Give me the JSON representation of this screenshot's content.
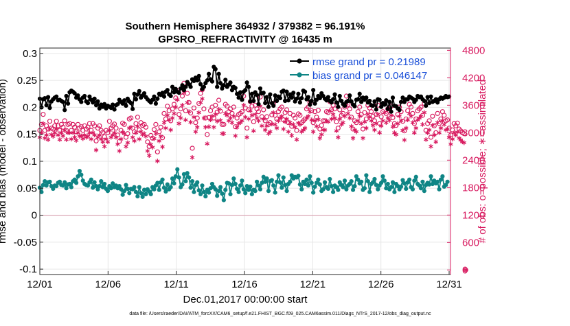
{
  "chart_data": {
    "type": "line",
    "title_lines": [
      "Southern Hemisphere 364932 / 379382 = 96.191%",
      "GPSRO_REFRACTIVITY @ 16435 m"
    ],
    "xlabel": "Dec.01,2017 00:00:00 start",
    "ylabel_left": "rmse and bias (model - observation)",
    "ylabel_right": "# of obs: o=possible; ∗=assimilated",
    "footnote": "data file: /Users/raeder/DAI/ATM_forcXX/CAM6_setup/f.e21.FHIST_BGC.f09_025.CAM6assim.011/Diags_NTrS_2017-12/obs_diag_output.nc",
    "x_ticks": [
      "12/01",
      "12/06",
      "12/11",
      "12/16",
      "12/21",
      "12/26",
      "12/31"
    ],
    "x_tick_values": [
      1,
      6,
      11,
      16,
      21,
      26,
      31
    ],
    "xlim": [
      1,
      31.1
    ],
    "y_left_ticks": [
      "0.3",
      "0.25",
      "0.2",
      "0.15",
      "0.1",
      "0.05",
      "0",
      "-0.05",
      "-0.1"
    ],
    "y_left_tick_values": [
      0.3,
      0.25,
      0.2,
      0.15,
      0.1,
      0.05,
      0,
      -0.05,
      -0.1
    ],
    "ylim_left": [
      -0.11,
      0.31
    ],
    "y_right_ticks": [
      "4800",
      "4200",
      "3600",
      "3000",
      "2400",
      "1800",
      "1200",
      "600",
      "0"
    ],
    "y_right_tick_values": [
      4800,
      4200,
      3600,
      3000,
      2400,
      1800,
      1200,
      600,
      0
    ],
    "ylim_right": [
      -100,
      4850
    ],
    "legend": {
      "location": "top-right",
      "entries": [
        "rmse grand pr = 0.21989",
        "bias grand pr = 0.046147"
      ]
    },
    "colors": {
      "rmse": "#000000",
      "bias": "#0f8585",
      "obs": "#d81b60",
      "zero_line": "#d9a0b0",
      "legend_text": "#1a4fd8"
    },
    "series": [
      {
        "name": "rmse grand pr = 0.21989",
        "marker": "filled-circle",
        "values": [
          0.216,
          0.2,
          0.215,
          0.217,
          0.204,
          0.219,
          0.199,
          0.211,
          0.215,
          0.218,
          0.22,
          0.213,
          0.214,
          0.212,
          0.21,
          0.195,
          0.221,
          0.207,
          0.228,
          0.231,
          0.229,
          0.226,
          0.218,
          0.222,
          0.215,
          0.21,
          0.218,
          0.221,
          0.211,
          0.208,
          0.22,
          0.214,
          0.209,
          0.216,
          0.204,
          0.211,
          0.198,
          0.205,
          0.201,
          0.206,
          0.198,
          0.203,
          0.201,
          0.199,
          0.205,
          0.196,
          0.204,
          0.206,
          0.214,
          0.21,
          0.207,
          0.213,
          0.203,
          0.216,
          0.211,
          0.208,
          0.197,
          0.225,
          0.215,
          0.224,
          0.23,
          0.218,
          0.222,
          0.226,
          0.219,
          0.215,
          0.212,
          0.209,
          0.214,
          0.22,
          0.207,
          0.216,
          0.225,
          0.223,
          0.227,
          0.22,
          0.229,
          0.232,
          0.224,
          0.221,
          0.238,
          0.228,
          0.234,
          0.229,
          0.227,
          0.235,
          0.241,
          0.232,
          0.238,
          0.247,
          0.243,
          0.238,
          0.252,
          0.249,
          0.255,
          0.25,
          0.258,
          0.243,
          0.234,
          0.238,
          0.245,
          0.25,
          0.262,
          0.252,
          0.248,
          0.275,
          0.271,
          0.238,
          0.262,
          0.245,
          0.235,
          0.241,
          0.251,
          0.238,
          0.242,
          0.246,
          0.232,
          0.238,
          0.236,
          0.225,
          0.218,
          0.228,
          0.214,
          0.229,
          0.232,
          0.246,
          0.238,
          0.211,
          0.225,
          0.212,
          0.228,
          0.223,
          0.206,
          0.235,
          0.226,
          0.227,
          0.208,
          0.219,
          0.201,
          0.224,
          0.208,
          0.203,
          0.222,
          0.212,
          0.22,
          0.217,
          0.229,
          0.231,
          0.212,
          0.229,
          0.213,
          0.224,
          0.218,
          0.227,
          0.211,
          0.216,
          0.225,
          0.209,
          0.217,
          0.231,
          0.229,
          0.215,
          0.219,
          0.205,
          0.212,
          0.232,
          0.207,
          0.214,
          0.221,
          0.217,
          0.226,
          0.221,
          0.216,
          0.213,
          0.219,
          0.212,
          0.209,
          0.215,
          0.224,
          0.209,
          0.201,
          0.221,
          0.212,
          0.206,
          0.203,
          0.21,
          0.212,
          0.222,
          0.211,
          0.205,
          0.202,
          0.214,
          0.215,
          0.225,
          0.21,
          0.218,
          0.214,
          0.218,
          0.209,
          0.212,
          0.204,
          0.203,
          0.211,
          0.196,
          0.215,
          0.214,
          0.201,
          0.208,
          0.205,
          0.213,
          0.197,
          0.21,
          0.192,
          0.218,
          0.203,
          0.202,
          0.198,
          0.195,
          0.21,
          0.218,
          0.21,
          0.215,
          0.215,
          0.22,
          0.218,
          0.216,
          0.21,
          0.214,
          0.221,
          0.219,
          0.22,
          0.215,
          0.212,
          0.203,
          0.219,
          0.208,
          0.22,
          0.21,
          0.212,
          0.215,
          0.209,
          0.215,
          0.218,
          0.216,
          0.218,
          0.221,
          0.219,
          0.22
        ]
      },
      {
        "name": "bias grand pr = 0.046147",
        "marker": "filled-circle",
        "values": [
          0.051,
          0.043,
          0.056,
          0.063,
          0.055,
          0.061,
          0.062,
          0.054,
          0.049,
          0.055,
          0.054,
          0.06,
          0.062,
          0.056,
          0.055,
          0.061,
          0.05,
          0.057,
          0.058,
          0.052,
          0.063,
          0.066,
          0.06,
          0.072,
          0.082,
          0.075,
          0.064,
          0.058,
          0.056,
          0.055,
          0.061,
          0.066,
          0.051,
          0.061,
          0.054,
          0.048,
          0.054,
          0.063,
          0.052,
          0.058,
          0.049,
          0.045,
          0.054,
          0.05,
          0.059,
          0.052,
          0.055,
          0.05,
          0.054,
          0.048,
          0.038,
          0.045,
          0.056,
          0.049,
          0.041,
          0.049,
          0.048,
          0.052,
          0.043,
          0.035,
          0.052,
          0.041,
          0.034,
          0.047,
          0.039,
          0.048,
          0.044,
          0.039,
          0.052,
          0.048,
          0.055,
          0.06,
          0.047,
          0.061,
          0.066,
          0.051,
          0.044,
          0.057,
          0.048,
          0.052,
          0.068,
          0.059,
          0.072,
          0.085,
          0.07,
          0.052,
          0.057,
          0.076,
          0.063,
          0.078,
          0.07,
          0.051,
          0.063,
          0.043,
          0.056,
          0.061,
          0.046,
          0.039,
          0.055,
          0.043,
          0.035,
          0.047,
          0.042,
          0.05,
          0.058,
          0.052,
          0.048,
          0.036,
          0.045,
          0.052,
          0.04,
          0.028,
          0.047,
          0.06,
          0.059,
          0.039,
          0.056,
          0.068,
          0.058,
          0.049,
          0.043,
          0.055,
          0.064,
          0.048,
          0.041,
          0.054,
          0.047,
          0.053,
          0.039,
          0.047,
          0.045,
          0.062,
          0.055,
          0.048,
          0.06,
          0.071,
          0.062,
          0.068,
          0.045,
          0.063,
          0.065,
          0.055,
          0.042,
          0.062,
          0.074,
          0.061,
          0.051,
          0.07,
          0.056,
          0.045,
          0.058,
          0.062,
          0.074,
          0.068,
          0.071,
          0.07,
          0.073,
          0.057,
          0.048,
          0.062,
          0.058,
          0.066,
          0.055,
          0.072,
          0.06,
          0.042,
          0.053,
          0.06,
          0.066,
          0.057,
          0.045,
          0.048,
          0.061,
          0.052,
          0.049,
          0.067,
          0.054,
          0.043,
          0.055,
          0.052,
          0.047,
          0.061,
          0.056,
          0.052,
          0.064,
          0.048,
          0.055,
          0.058,
          0.063,
          0.047,
          0.054,
          0.072,
          0.066,
          0.059,
          0.062,
          0.047,
          0.05,
          0.074,
          0.063,
          0.043,
          0.058,
          0.061,
          0.067,
          0.056,
          0.048,
          0.055,
          0.06,
          0.072,
          0.064,
          0.05,
          0.058,
          0.048,
          0.052,
          0.061,
          0.043,
          0.058,
          0.054,
          0.048,
          0.053,
          0.065,
          0.059,
          0.049,
          0.061,
          0.066,
          0.052,
          0.048,
          0.064,
          0.071,
          0.058,
          0.055,
          0.05,
          0.062,
          0.045,
          0.056,
          0.06,
          0.057,
          0.072,
          0.058,
          0.064,
          0.059,
          0.062,
          0.048,
          0.066,
          0.072,
          0.053,
          0.056,
          0.062
        ]
      },
      {
        "name": "possible",
        "marker": "open-circle",
        "axis": "right",
        "values": [
          3050,
          3180,
          3400,
          3050,
          3150,
          3080,
          3250,
          3100,
          3080,
          3150,
          3250,
          3150,
          3050,
          3180,
          3120,
          3260,
          3050,
          3180,
          3200,
          3050,
          3180,
          3120,
          3020,
          3180,
          3100,
          3130,
          3050,
          3150,
          3080,
          3120,
          3200,
          3050,
          3200,
          3150,
          2820,
          3100,
          3150,
          3050,
          3010,
          2910,
          3050,
          3000,
          3250,
          3100,
          3150,
          3190,
          3100,
          2950,
          2810,
          3050,
          3210,
          3180,
          2900,
          2980,
          3300,
          3320,
          3100,
          3020,
          3200,
          3340,
          3060,
          3220,
          3160,
          3180,
          3120,
          2800,
          2700,
          2940,
          2880,
          3070,
          3180,
          2580,
          3020,
          3120,
          2890,
          3420,
          3300,
          3580,
          3480,
          3260,
          3520,
          3620,
          3760,
          3920,
          3400,
          3520,
          3800,
          4080,
          3480,
          3860,
          3660,
          3430,
          2660,
          3540,
          3220,
          3320,
          3640,
          3860,
          3940,
          3520,
          3320,
          2960,
          3330,
          3480,
          3560,
          3320,
          3600,
          3450,
          3710,
          3470,
          3180,
          3180,
          3620,
          3580,
          3460,
          3520,
          3420,
          3560,
          3130,
          3320,
          3400,
          3420,
          3460,
          3800,
          3540,
          3100,
          3500,
          3680,
          3580,
          3240,
          3600,
          3520,
          3460,
          3780,
          3350,
          3500,
          3260,
          3350,
          3180,
          3220,
          3390,
          3640,
          3380,
          3300,
          3460,
          3520,
          3560,
          3280,
          3440,
          3500,
          3220,
          3420,
          3140,
          3380,
          3320,
          3050,
          3410,
          3380,
          3220,
          3260,
          3300,
          3520,
          3560,
          3660,
          3480,
          3220,
          3460,
          3340,
          3490,
          3080,
          3160,
          3260,
          3260,
          3460,
          3440,
          3680,
          3500,
          3600,
          3520,
          3240,
          3100,
          3500,
          3380,
          3420,
          3560,
          3800,
          3620,
          3520,
          3340,
          3080,
          3260,
          3220,
          3460,
          3560,
          3400,
          3080,
          3440,
          3300,
          3600,
          3540,
          3460,
          3360,
          3260,
          3400,
          3600,
          3200,
          3350,
          3460,
          3640,
          3420,
          3520,
          3470,
          3580,
          3330,
          3200,
          3160,
          3400,
          3560,
          3460,
          3250,
          3040,
          3300,
          3480,
          3620,
          3560,
          3420,
          3200,
          3300,
          3480,
          3520,
          3560,
          3380,
          3640,
          3050,
          3200,
          3260,
          2900,
          3360,
          3150,
          3000,
          3420,
          3200,
          3300,
          3460,
          3380,
          3260,
          3280,
          3100,
          2950,
          3060,
          3200,
          3150,
          3210,
          3080,
          3040,
          3000,
          2980,
          0
        ]
      },
      {
        "name": "assimilated",
        "marker": "asterisk",
        "axis": "right",
        "values": [
          2900,
          3000,
          3200,
          2880,
          2950,
          2850,
          3080,
          2960,
          2920,
          3000,
          3080,
          2950,
          2850,
          3000,
          2930,
          3050,
          2850,
          3000,
          3000,
          2860,
          3000,
          2900,
          2830,
          3000,
          2920,
          2930,
          2870,
          2950,
          2900,
          2920,
          3000,
          2860,
          3000,
          2950,
          2620,
          2900,
          2950,
          2860,
          2800,
          2700,
          2860,
          2800,
          3050,
          2900,
          2950,
          3000,
          2900,
          2750,
          2600,
          2860,
          3010,
          2980,
          2700,
          2780,
          3100,
          3120,
          2900,
          2820,
          3000,
          3140,
          2860,
          3020,
          2960,
          2980,
          2920,
          2600,
          2500,
          2740,
          2680,
          2870,
          2980,
          2380,
          2820,
          2920,
          2690,
          3220,
          3100,
          3380,
          3280,
          3060,
          3320,
          3420,
          3560,
          3720,
          3200,
          3320,
          3600,
          3880,
          3280,
          3660,
          3460,
          3230,
          2460,
          3340,
          3020,
          3120,
          3440,
          3660,
          3740,
          3320,
          3120,
          2760,
          3130,
          3280,
          3360,
          3120,
          3400,
          3250,
          3510,
          3270,
          2980,
          2980,
          3420,
          3380,
          3260,
          3320,
          3220,
          3360,
          2930,
          3120,
          3200,
          3220,
          3260,
          3600,
          3340,
          2900,
          3300,
          3480,
          3380,
          3040,
          3400,
          3320,
          3260,
          3580,
          3150,
          3300,
          3060,
          3150,
          2980,
          3020,
          3190,
          3440,
          3180,
          3100,
          3260,
          3320,
          3360,
          3080,
          3240,
          3300,
          3020,
          3220,
          2940,
          3180,
          3120,
          2850,
          3210,
          3180,
          3020,
          3060,
          3100,
          3320,
          3360,
          3460,
          3280,
          3020,
          3260,
          3140,
          3290,
          2880,
          2960,
          3060,
          3060,
          3260,
          3240,
          3480,
          3300,
          3400,
          3320,
          3040,
          2900,
          3300,
          3180,
          3220,
          3360,
          3600,
          3420,
          3320,
          3140,
          2880,
          3060,
          3020,
          3260,
          3360,
          3200,
          2880,
          3240,
          3100,
          3400,
          3340,
          3260,
          3160,
          3060,
          3200,
          3400,
          3000,
          3150,
          3260,
          3440,
          3220,
          3320,
          3270,
          3380,
          3130,
          3000,
          2960,
          3200,
          3360,
          3260,
          3050,
          2840,
          3100,
          3280,
          3420,
          3360,
          3220,
          3000,
          3100,
          3280,
          3320,
          3360,
          3180,
          3440,
          2850,
          3000,
          3060,
          2700,
          3160,
          2950,
          2800,
          3220,
          3000,
          3100,
          3260,
          3180,
          3060,
          3080,
          2900,
          2750,
          2860,
          3000,
          2950,
          3010,
          2880,
          2840,
          2800,
          2780,
          0
        ]
      }
    ]
  }
}
